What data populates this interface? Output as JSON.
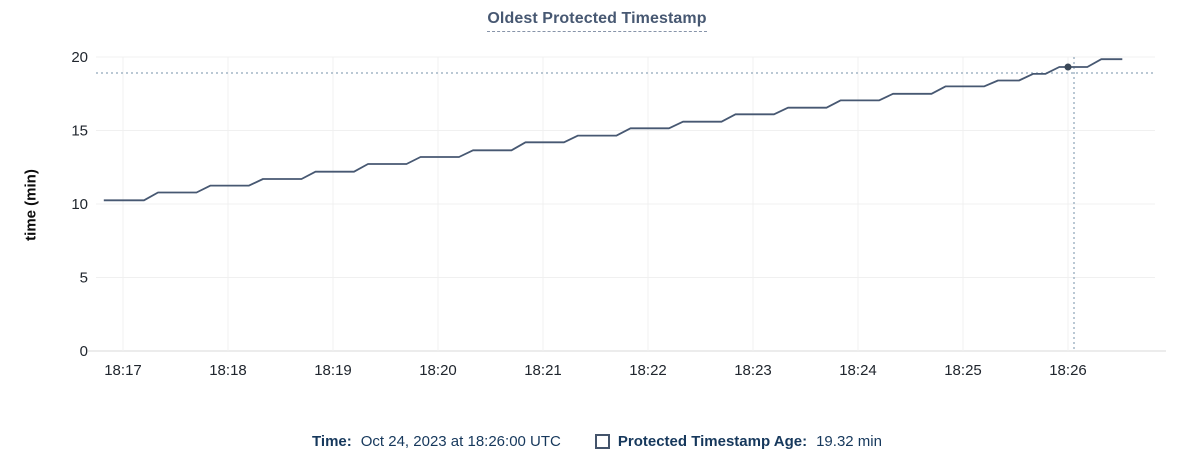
{
  "header": {
    "title": "Oldest Protected Timestamp"
  },
  "footer": {
    "time_label": "Time:",
    "time_value": "Oct 24, 2023 at 18:26:00 UTC",
    "series_icon": "square-outline-icon",
    "series_label": "Protected Timestamp Age:",
    "series_value": "19.32 min"
  },
  "colors": {
    "title": "#475872",
    "line": "#475872",
    "dot": "#3a4858",
    "crosshair": "#a3b6c6",
    "grid": "#f0f0f0",
    "axis": "#d8d8d8",
    "tick_text": "#20262e",
    "footer_text": "#16385c"
  },
  "chart_data": {
    "type": "line",
    "title": "Oldest Protected Timestamp",
    "xlabel": "",
    "ylabel": "time (min)",
    "ylim": [
      0,
      20
    ],
    "y_ticks": [
      0,
      5,
      10,
      15,
      20
    ],
    "x_ticks": [
      "18:17",
      "18:18",
      "18:19",
      "18:20",
      "18:21",
      "18:22",
      "18:23",
      "18:24",
      "18:25",
      "18:26"
    ],
    "x_tick_interval_seconds": 60,
    "grid": true,
    "legend_position": "bottom",
    "series": [
      {
        "name": "Protected Timestamp Age",
        "unit": "min",
        "points": [
          [
            -11,
            10.25
          ],
          [
            12,
            10.25
          ],
          [
            20,
            10.78
          ],
          [
            42,
            10.78
          ],
          [
            50,
            11.25
          ],
          [
            72,
            11.25
          ],
          [
            80,
            11.7
          ],
          [
            102,
            11.7
          ],
          [
            110,
            12.2
          ],
          [
            132,
            12.2
          ],
          [
            140,
            12.72
          ],
          [
            162,
            12.72
          ],
          [
            170,
            13.2
          ],
          [
            192,
            13.2
          ],
          [
            200,
            13.65
          ],
          [
            222,
            13.65
          ],
          [
            230,
            14.2
          ],
          [
            252,
            14.2
          ],
          [
            260,
            14.65
          ],
          [
            282,
            14.65
          ],
          [
            290,
            15.15
          ],
          [
            312,
            15.15
          ],
          [
            320,
            15.6
          ],
          [
            342,
            15.6
          ],
          [
            350,
            16.1
          ],
          [
            372,
            16.1
          ],
          [
            380,
            16.55
          ],
          [
            402,
            16.55
          ],
          [
            410,
            17.05
          ],
          [
            432,
            17.05
          ],
          [
            440,
            17.5
          ],
          [
            462,
            17.5
          ],
          [
            470,
            18.0
          ],
          [
            492,
            18.0
          ],
          [
            500,
            18.4
          ],
          [
            512,
            18.4
          ],
          [
            520,
            18.85
          ],
          [
            527,
            18.85
          ],
          [
            535,
            19.32
          ],
          [
            551,
            19.32
          ],
          [
            559,
            19.85
          ],
          [
            571,
            19.85
          ]
        ]
      }
    ],
    "highlight": {
      "seconds": 540,
      "x_label": "18:26",
      "value": 19.32,
      "value_text": "19.32 min",
      "time_text": "Oct 24, 2023 at 18:26:00 UTC"
    }
  }
}
